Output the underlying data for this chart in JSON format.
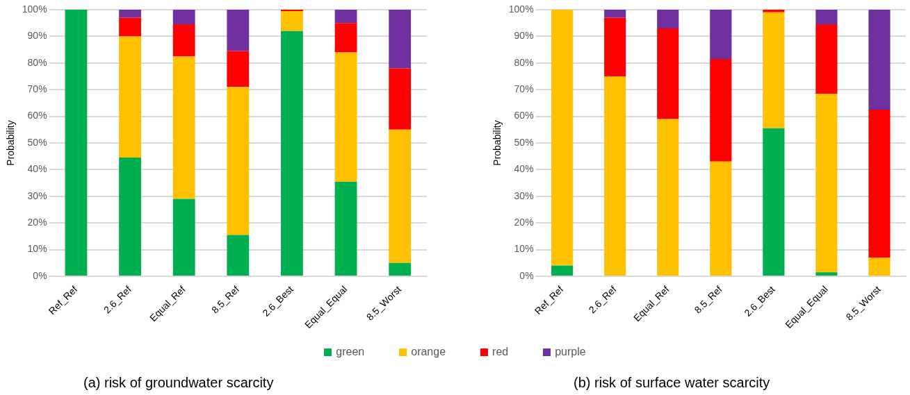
{
  "chart_data": [
    {
      "type": "bar",
      "stacked": true,
      "title": "(a) risk of groundwater scarcity",
      "ylabel": "Probability",
      "categories": [
        "Ref_Ref",
        "2.6_Ref",
        "Equal_Ref",
        "8.5_Ref",
        "2.6_Best",
        "Equal_Equal",
        "8.5_Worst"
      ],
      "series": [
        {
          "name": "green",
          "color": "#00b050",
          "values": [
            100,
            44.5,
            29,
            15.5,
            92,
            35.5,
            5
          ]
        },
        {
          "name": "orange",
          "color": "#ffc000",
          "values": [
            0,
            45.5,
            53.5,
            55.5,
            7.5,
            48.5,
            50
          ]
        },
        {
          "name": "red",
          "color": "#ff0000",
          "values": [
            0,
            7,
            12,
            13.5,
            0.5,
            11,
            23
          ]
        },
        {
          "name": "purple",
          "color": "#7030a0",
          "values": [
            0,
            3,
            5.5,
            15.5,
            0,
            5,
            22
          ]
        }
      ],
      "ylim": [
        0,
        100
      ],
      "yticks": [
        {
          "value": 0,
          "label": "0%"
        },
        {
          "value": 10,
          "label": "10%"
        },
        {
          "value": 20,
          "label": "20%"
        },
        {
          "value": 30,
          "label": "30%"
        },
        {
          "value": 40,
          "label": "40%"
        },
        {
          "value": 50,
          "label": "50%"
        },
        {
          "value": 60,
          "label": "60%"
        },
        {
          "value": 70,
          "label": "70%"
        },
        {
          "value": 80,
          "label": "80%"
        },
        {
          "value": 90,
          "label": "90%"
        },
        {
          "value": 100,
          "label": "100%"
        }
      ],
      "grid": "y",
      "legend": "bottom"
    },
    {
      "type": "bar",
      "stacked": true,
      "title": "(b) risk of surface water scarcity",
      "ylabel": "Probability",
      "categories": [
        "Ref_Ref",
        "2.6_Ref",
        "Equal_Ref",
        "8.5_Ref",
        "2.6_Best",
        "Equal_Equal",
        "8.5_Worst"
      ],
      "series": [
        {
          "color": "#00b050",
          "values": [
            4,
            0,
            0,
            0,
            55.5,
            1.5,
            0
          ]
        },
        {
          "color": "#ffc000",
          "values": [
            96,
            75,
            59,
            43,
            43.5,
            67,
            7
          ]
        },
        {
          "color": "#ff0000",
          "values": [
            0,
            22,
            34,
            38.5,
            1,
            26,
            55.5
          ]
        },
        {
          "color": "#7030a0",
          "values": [
            0,
            3,
            7,
            18.5,
            0,
            5.5,
            37.5
          ]
        }
      ],
      "ylim": [
        0,
        100
      ],
      "yticks": [
        {
          "value": 0,
          "label": "0%"
        },
        {
          "value": 10,
          "label": "10%"
        },
        {
          "value": 20,
          "label": "20%"
        },
        {
          "value": 30,
          "label": "30%"
        },
        {
          "value": 40,
          "label": "40%"
        },
        {
          "value": 50,
          "label": "50%"
        },
        {
          "value": 60,
          "label": "60%"
        },
        {
          "value": 70,
          "label": "70%"
        },
        {
          "value": 80,
          "label": "80%"
        },
        {
          "value": 90,
          "label": "90%"
        },
        {
          "value": 100,
          "label": "100%"
        }
      ],
      "grid": "y"
    }
  ]
}
